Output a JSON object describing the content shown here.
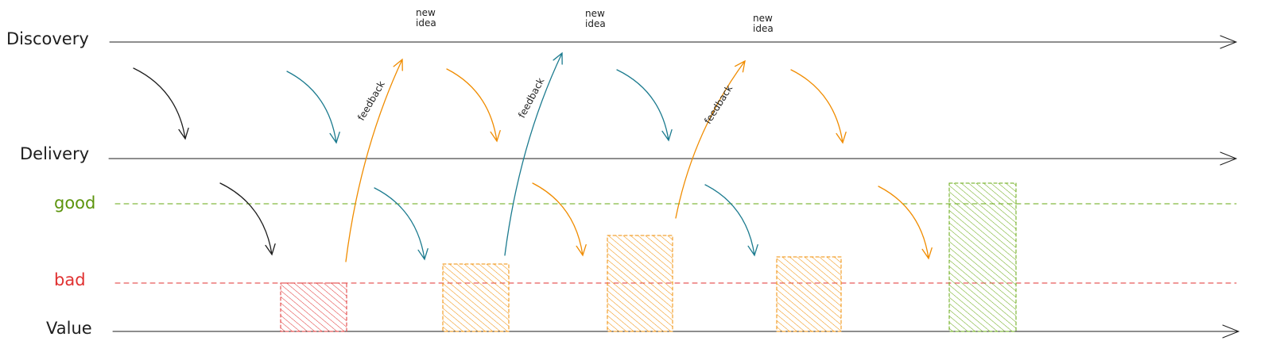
{
  "lanes": {
    "discovery": "Discovery",
    "delivery": "Delivery",
    "value": "Value"
  },
  "levels": {
    "good": "good",
    "bad": "bad"
  },
  "new_idea": [
    "new\nidea",
    "new\nidea",
    "new\nidea"
  ],
  "feedback": [
    "feedback",
    "feedback",
    "feedback"
  ]
}
